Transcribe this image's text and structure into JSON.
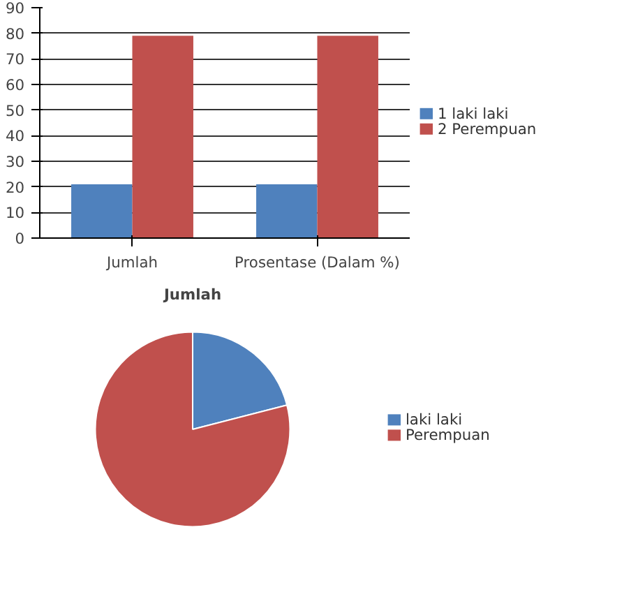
{
  "chart_data": [
    {
      "type": "bar",
      "categories": [
        "Jumlah",
        "Prosentase (Dalam %)"
      ],
      "series": [
        {
          "name": "1 laki laki",
          "color": "#4f81bd",
          "values": [
            21,
            21
          ]
        },
        {
          "name": "2 Perempuan",
          "color": "#c0504d",
          "values": [
            79,
            79
          ]
        }
      ],
      "ylim": [
        0,
        90
      ],
      "yticks": [
        0,
        10,
        20,
        30,
        40,
        50,
        60,
        70,
        80,
        90
      ],
      "grid": "y",
      "legend": "right"
    },
    {
      "type": "pie",
      "title": "Jumlah",
      "categories": [
        "laki laki",
        "Perempuan"
      ],
      "values": [
        21,
        79
      ],
      "colors": [
        "#4f81bd",
        "#c0504d"
      ],
      "legend": "right"
    }
  ]
}
